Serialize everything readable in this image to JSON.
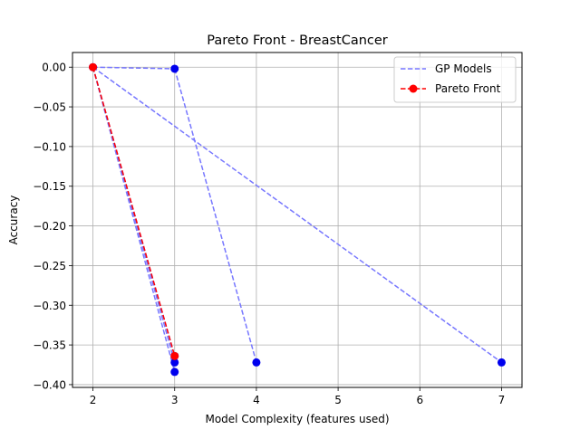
{
  "chart_data": {
    "type": "line",
    "title": "Pareto Front - BreastCancer",
    "xlabel": "Model Complexity (features used)",
    "ylabel": "Accuracy",
    "xlim": [
      1.75,
      7.25
    ],
    "ylim": [
      -0.4035,
      0.0185
    ],
    "xticks": [
      2,
      3,
      4,
      5,
      6,
      7
    ],
    "yticks": [
      0.0,
      -0.05,
      -0.1,
      -0.15,
      -0.2,
      -0.25,
      -0.3,
      -0.35,
      -0.4
    ],
    "xtick_labels": [
      "2",
      "3",
      "4",
      "5",
      "6",
      "7"
    ],
    "ytick_labels": [
      "0.00",
      "−0.05",
      "−0.10",
      "−0.15",
      "−0.20",
      "−0.25",
      "−0.30",
      "−0.35",
      "−0.40"
    ],
    "grid": true,
    "legend_position": "top-right",
    "series": [
      {
        "name": "GP Models",
        "style": "dashed",
        "color": "#7777ff",
        "marker_color": "#0000ee",
        "segments": [
          [
            [
              2,
              0.0
            ],
            [
              3,
              -0.002
            ]
          ],
          [
            [
              3,
              -0.002
            ],
            [
              4,
              -0.372
            ]
          ],
          [
            [
              2,
              0.0
            ],
            [
              7,
              -0.372
            ]
          ],
          [
            [
              2,
              0.0
            ],
            [
              3,
              -0.372
            ]
          ],
          [
            [
              2,
              0.0
            ],
            [
              3,
              -0.384
            ]
          ],
          [
            [
              2,
              0.0
            ],
            [
              3,
              -0.364
            ]
          ]
        ],
        "points": [
          [
            2,
            0.0
          ],
          [
            3,
            -0.002
          ],
          [
            3,
            -0.364
          ],
          [
            3,
            -0.372
          ],
          [
            3,
            -0.384
          ],
          [
            4,
            -0.372
          ],
          [
            7,
            -0.372
          ]
        ]
      },
      {
        "name": "Pareto Front",
        "style": "dashed",
        "color": "#ff0000",
        "marker": "o",
        "x": [
          2,
          3
        ],
        "y": [
          0.0,
          -0.364
        ]
      }
    ]
  }
}
